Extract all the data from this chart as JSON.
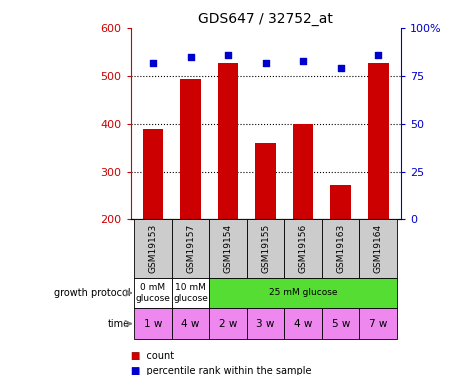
{
  "title": "GDS647 / 32752_at",
  "samples": [
    "GSM19153",
    "GSM19157",
    "GSM19154",
    "GSM19155",
    "GSM19156",
    "GSM19163",
    "GSM19164"
  ],
  "counts": [
    390,
    493,
    528,
    360,
    400,
    272,
    528
  ],
  "percentiles": [
    82,
    85,
    86,
    82,
    83,
    79,
    86
  ],
  "ylim_left": [
    200,
    600
  ],
  "ylim_right": [
    0,
    100
  ],
  "yticks_left": [
    200,
    300,
    400,
    500,
    600
  ],
  "yticks_right": [
    0,
    25,
    50,
    75,
    100
  ],
  "bar_color": "#cc0000",
  "dot_color": "#0000cc",
  "time_labels": [
    "1 w",
    "4 w",
    "2 w",
    "3 w",
    "4 w",
    "5 w",
    "7 w"
  ],
  "time_color": "#ee88ee",
  "sample_bg_color": "#cccccc",
  "gp_data": [
    {
      "label": "0 mM\nglucose",
      "start": 0,
      "end": 1,
      "color": "#ffffff"
    },
    {
      "label": "10 mM\nglucose",
      "start": 1,
      "end": 2,
      "color": "#ffffff"
    },
    {
      "label": "25 mM glucose",
      "start": 2,
      "end": 7,
      "color": "#55dd33"
    }
  ],
  "legend_count_color": "#cc0000",
  "legend_pct_color": "#0000cc"
}
